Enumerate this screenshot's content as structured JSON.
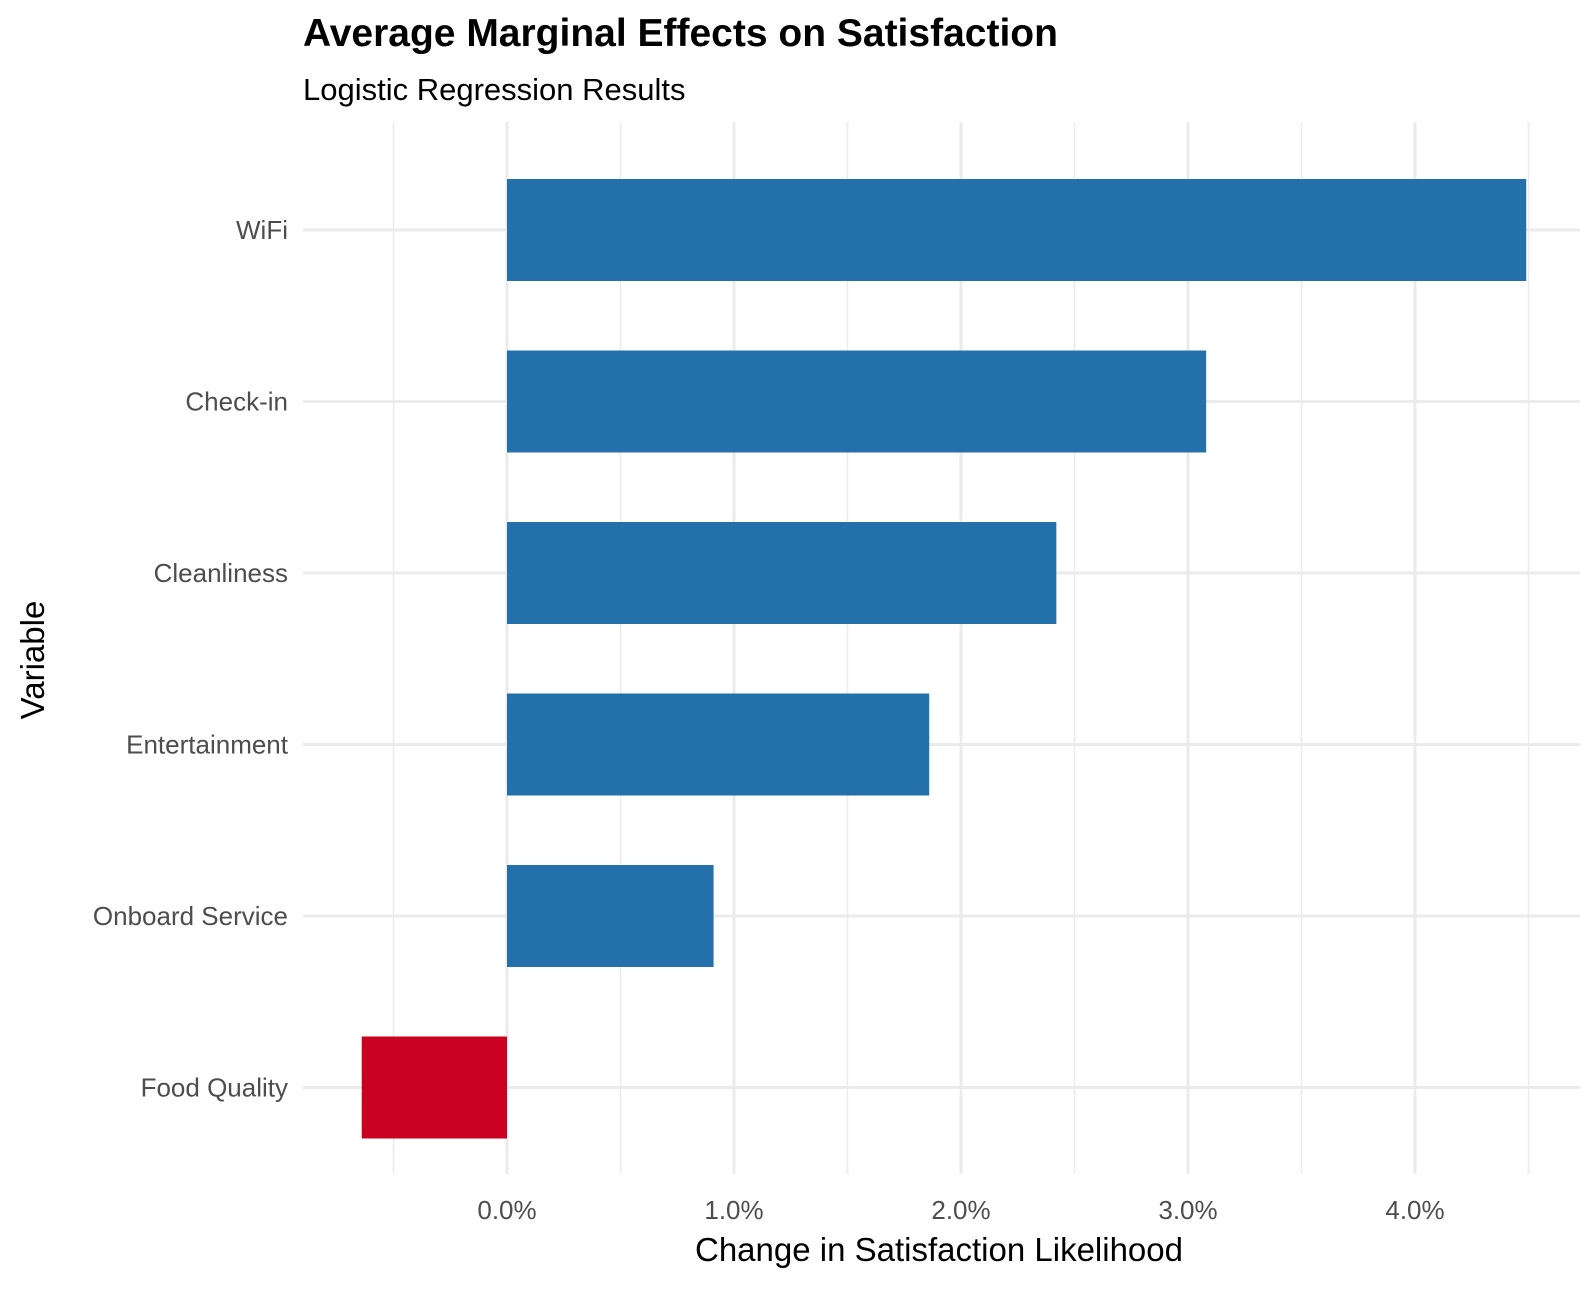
{
  "chart_data": {
    "type": "bar",
    "orientation": "horizontal",
    "title": "Average Marginal Effects on Satisfaction",
    "subtitle": "Logistic Regression Results",
    "xlabel": "Change in Satisfaction Likelihood",
    "ylabel": "Variable",
    "categories": [
      "WiFi",
      "Check-in",
      "Cleanliness",
      "Entertainment",
      "Onboard Service",
      "Food Quality"
    ],
    "values": [
      4.49,
      3.08,
      2.42,
      1.86,
      0.91,
      -0.64
    ],
    "value_unit": "%",
    "xlim": [
      -0.9,
      4.7
    ],
    "x_ticks": [
      0,
      1,
      2,
      3,
      4
    ],
    "x_tick_labels": [
      "0.0%",
      "1.0%",
      "2.0%",
      "3.0%",
      "4.0%"
    ],
    "grid": true,
    "colors": {
      "positive": "#2470ab",
      "negative": "#ca0020",
      "grid": "#ebebeb"
    }
  }
}
